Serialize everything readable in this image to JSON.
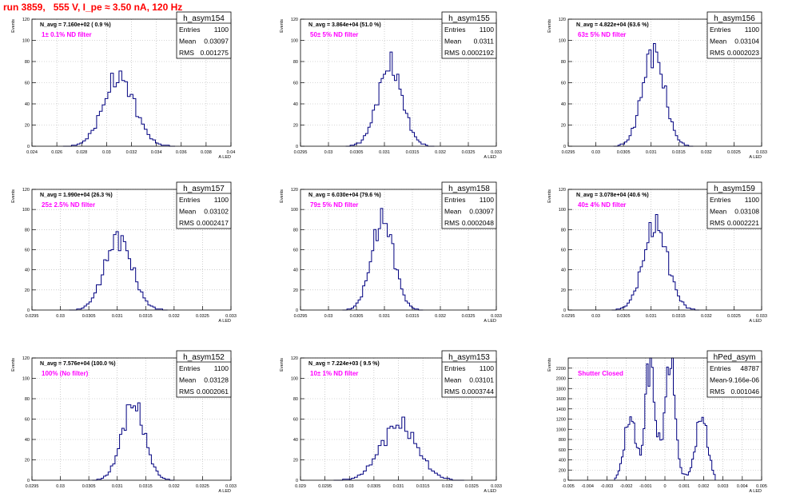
{
  "page_title": "run 3859,   555 V, I_pe ≈ 3.50 nA, 120 Hz",
  "colors": {
    "title": "#ff0000",
    "annotation": "#ff00ff",
    "histogram": "#000080",
    "grid": "#b0b0b0",
    "frame": "#000000"
  },
  "chart_data": [
    {
      "type": "histogram",
      "title": "h_asym154",
      "stats": {
        "entries_label": "Entries",
        "entries": "1100",
        "mean_label": "Mean",
        "mean": "0.03097",
        "rms_label": "RMS",
        "rms": "0.001275"
      },
      "navg": "N_avg = 7.160e+02 ( 0.9 %)",
      "filter": "1± 0.1% ND filter",
      "ylabel": "Events",
      "xlabel": "A_LED",
      "xlim": [
        0.024,
        0.04
      ],
      "ylim": [
        0,
        120
      ],
      "xticks": [
        "0.024",
        "0.026",
        "0.028",
        "0.03",
        "0.032",
        "0.034",
        "0.036",
        "0.038",
        "0.04"
      ],
      "yticks": [
        "0",
        "20",
        "40",
        "60",
        "80",
        "100",
        "120"
      ],
      "grid": true,
      "shape": {
        "mean": 0.031,
        "sigma": 0.00125,
        "peak": 65,
        "bins": 40
      }
    },
    {
      "type": "histogram",
      "title": "h_asym155",
      "stats": {
        "entries_label": "Entries",
        "entries": "1100",
        "mean_label": "Mean",
        "mean": "0.0311",
        "rms_label": "RMS",
        "rms": "0.0002192"
      },
      "navg": "N_avg = 3.864e+04 (51.0 %)",
      "filter": "50± 5% ND filter",
      "ylabel": "Events",
      "xlabel": "A_LED",
      "xlim": [
        0.0295,
        0.033
      ],
      "ylim": [
        0,
        120
      ],
      "xticks": [
        "0.0295",
        "0.03",
        "0.0305",
        "0.031",
        "0.0315",
        "0.032",
        "0.0325",
        "0.033"
      ],
      "yticks": [
        "0",
        "20",
        "40",
        "60",
        "80",
        "100",
        "120"
      ],
      "grid": true,
      "shape": {
        "mean": 0.0311,
        "sigma": 0.00022,
        "peak": 76,
        "bins": 40
      }
    },
    {
      "type": "histogram",
      "title": "h_asym156",
      "stats": {
        "entries_label": "Entries",
        "entries": "1100",
        "mean_label": "Mean",
        "mean": "0.03104",
        "rms_label": "RMS",
        "rms": "0.0002023"
      },
      "navg": "N_avg = 4.822e+04 (63.6 %)",
      "filter": "63± 5% ND filter",
      "ylabel": "Events",
      "xlabel": "A_LED",
      "xlim": [
        0.0295,
        0.033
      ],
      "ylim": [
        0,
        120
      ],
      "xticks": [
        "0.0295",
        "0.03",
        "0.0305",
        "0.031",
        "0.0315",
        "0.032",
        "0.0325",
        "0.033"
      ],
      "yticks": [
        "0",
        "20",
        "40",
        "60",
        "80",
        "100",
        "120"
      ],
      "grid": true,
      "shape": {
        "mean": 0.03104,
        "sigma": 0.0002,
        "peak": 90,
        "bins": 36
      }
    },
    {
      "type": "histogram",
      "title": "h_asym157",
      "stats": {
        "entries_label": "Entries",
        "entries": "1100",
        "mean_label": "Mean",
        "mean": "0.03102",
        "rms_label": "RMS",
        "rms": "0.0002417"
      },
      "navg": "N_avg = 1.990e+04 (26.3 %)",
      "filter": "25± 2.5% ND filter",
      "ylabel": "Events",
      "xlabel": "A_LED",
      "xlim": [
        0.0295,
        0.033
      ],
      "ylim": [
        0,
        120
      ],
      "xticks": [
        "0.0295",
        "0.03",
        "0.0305",
        "0.031",
        "0.0315",
        "0.032",
        "0.0325",
        "0.033"
      ],
      "yticks": [
        "0",
        "20",
        "40",
        "60",
        "80",
        "100",
        "120"
      ],
      "grid": true,
      "shape": {
        "mean": 0.03102,
        "sigma": 0.00024,
        "peak": 72,
        "bins": 40
      }
    },
    {
      "type": "histogram",
      "title": "h_asym158",
      "stats": {
        "entries_label": "Entries",
        "entries": "1100",
        "mean_label": "Mean",
        "mean": "0.03097",
        "rms_label": "RMS",
        "rms": "0.0002048"
      },
      "navg": "N_avg = 6.030e+04 (79.6 %)",
      "filter": "79± 5% ND filter",
      "ylabel": "Events",
      "xlabel": "A_LED",
      "xlim": [
        0.0295,
        0.033
      ],
      "ylim": [
        0,
        120
      ],
      "xticks": [
        "0.0295",
        "0.03",
        "0.0305",
        "0.031",
        "0.0315",
        "0.032",
        "0.0325",
        "0.033"
      ],
      "yticks": [
        "0",
        "20",
        "40",
        "60",
        "80",
        "100",
        "120"
      ],
      "grid": true,
      "shape": {
        "mean": 0.03097,
        "sigma": 0.0002,
        "peak": 90,
        "bins": 36
      }
    },
    {
      "type": "histogram",
      "title": "h_asym159",
      "stats": {
        "entries_label": "Entries",
        "entries": "1100",
        "mean_label": "Mean",
        "mean": "0.03108",
        "rms_label": "RMS",
        "rms": "0.0002221"
      },
      "navg": "N_avg = 3.078e+04 (40.6 %)",
      "filter": "40± 4% ND filter",
      "ylabel": "Events",
      "xlabel": "A_LED",
      "xlim": [
        0.0295,
        0.033
      ],
      "ylim": [
        0,
        120
      ],
      "xticks": [
        "0.0295",
        "0.03",
        "0.0305",
        "0.031",
        "0.0315",
        "0.032",
        "0.0325",
        "0.033"
      ],
      "yticks": [
        "0",
        "20",
        "40",
        "60",
        "80",
        "100",
        "120"
      ],
      "grid": true,
      "shape": {
        "mean": 0.03108,
        "sigma": 0.00022,
        "peak": 84,
        "bins": 40
      }
    },
    {
      "type": "histogram",
      "title": "h_asym152",
      "stats": {
        "entries_label": "Entries",
        "entries": "1100",
        "mean_label": "Mean",
        "mean": "0.03128",
        "rms_label": "RMS",
        "rms": "0.0002061"
      },
      "navg": "N_avg = 7.576e+04 (100.0 %)",
      "filter": "100% (No filter)",
      "ylabel": "Events",
      "xlabel": "A_LED",
      "xlim": [
        0.0295,
        0.033
      ],
      "ylim": [
        0,
        120
      ],
      "xticks": [
        "0.0295",
        "0.03",
        "0.0305",
        "0.031",
        "0.0315",
        "0.032",
        "0.0325",
        "0.033"
      ],
      "yticks": [
        "0",
        "20",
        "40",
        "60",
        "80",
        "100",
        "120"
      ],
      "grid": true,
      "shape": {
        "mean": 0.03128,
        "sigma": 0.0002,
        "peak": 75,
        "bins": 36
      }
    },
    {
      "type": "histogram",
      "title": "h_asym153",
      "stats": {
        "entries_label": "Entries",
        "entries": "1100",
        "mean_label": "Mean",
        "mean": "0.03101",
        "rms_label": "RMS",
        "rms": "0.0003744"
      },
      "navg": "N_avg = 7.224e+03 ( 9.5 %)",
      "filter": "10± 1% ND filter",
      "ylabel": "Events",
      "xlabel": "A_LED",
      "xlim": [
        0.029,
        0.033
      ],
      "ylim": [
        0,
        120
      ],
      "xticks": [
        "0.029",
        "0.0295",
        "0.03",
        "0.0305",
        "0.031",
        "0.0315",
        "0.032",
        "0.0325",
        "0.033"
      ],
      "yticks": [
        "0",
        "20",
        "40",
        "60",
        "80",
        "100",
        "120"
      ],
      "grid": true,
      "shape": {
        "mean": 0.03101,
        "sigma": 0.00037,
        "peak": 55,
        "bins": 44
      }
    },
    {
      "type": "histogram",
      "title": "hPed_asym",
      "stats": {
        "entries_label": "Entries",
        "entries": "48787",
        "mean_label": "Mean",
        "mean": "-9.166e-06",
        "rms_label": "RMS",
        "rms": "0.001046"
      },
      "navg": "",
      "filter": "Shutter Closed",
      "ylabel": "Events",
      "xlabel": "A_LED",
      "xlim": [
        -0.005,
        0.005
      ],
      "ylim": [
        0,
        2400
      ],
      "xticks": [
        "-0.005",
        "-0.004",
        "-0.003",
        "-0.002",
        "-0.001",
        "0",
        "0.001",
        "0.002",
        "0.003",
        "0.004",
        "0.005"
      ],
      "yticks": [
        "0",
        "200",
        "400",
        "600",
        "800",
        "1000",
        "1200",
        "1400",
        "1600",
        "1800",
        "2000",
        "2200"
      ],
      "grid": true,
      "shape": {
        "multi": [
          [
            -0.0018,
            0.0003,
            1200
          ],
          [
            -0.0008,
            0.0002,
            2050
          ],
          [
            0.0003,
            0.0002,
            2250
          ],
          [
            0.0019,
            0.0003,
            1250
          ],
          [
            -0.0002,
            0.0006,
            700
          ]
        ],
        "bins": 60
      }
    }
  ]
}
